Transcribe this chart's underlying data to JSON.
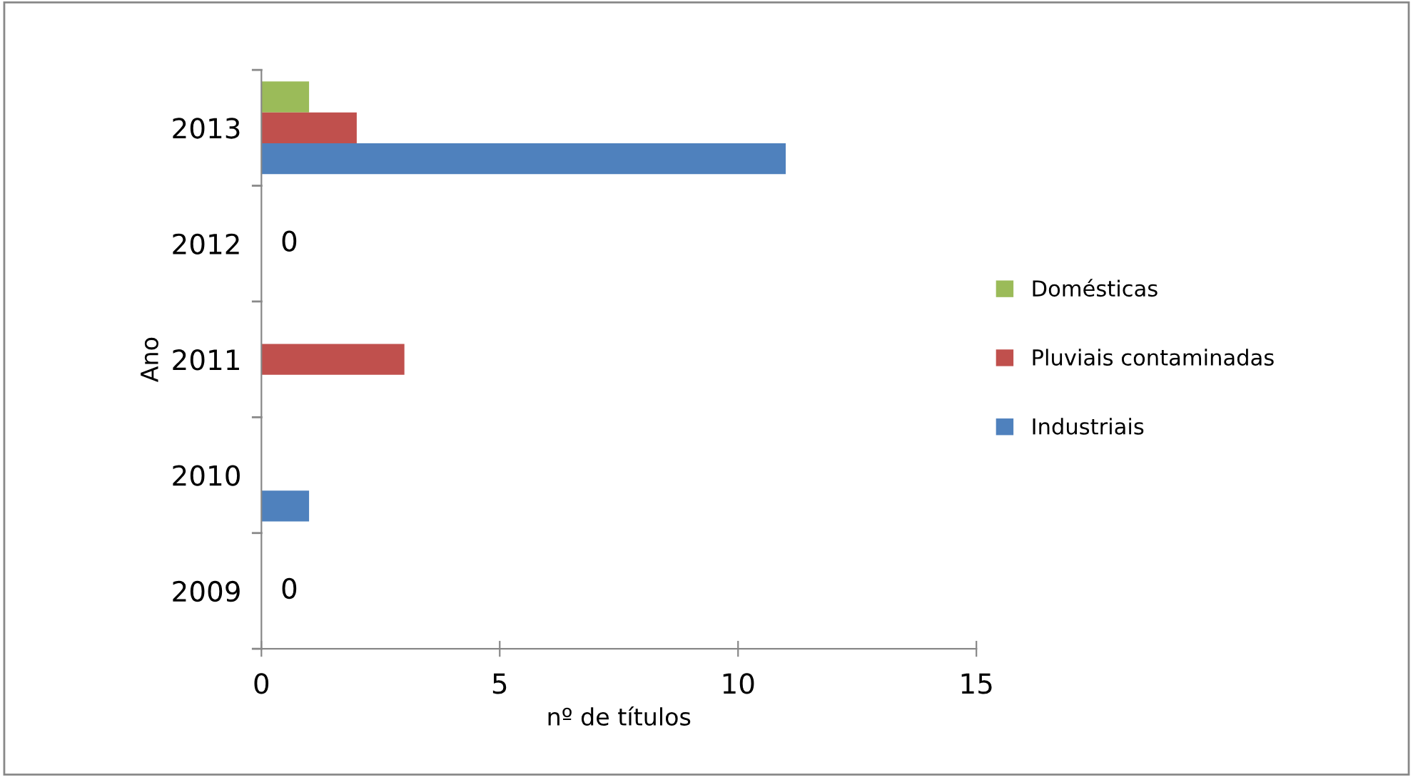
{
  "chart_data": {
    "type": "bar",
    "orientation": "horizontal",
    "xlabel": "nº de títulos",
    "ylabel": "Ano",
    "categories": [
      "2013",
      "2012",
      "2011",
      "2010",
      "2009"
    ],
    "series": [
      {
        "name": "Domésticas",
        "color": "#9bbb59",
        "values": [
          1,
          0,
          0,
          0,
          0
        ]
      },
      {
        "name": "Pluviais contaminadas",
        "color": "#c0504d",
        "values": [
          2,
          0,
          3,
          0,
          0
        ],
        "value_labels": [
          null,
          "0",
          null,
          null,
          "0"
        ]
      },
      {
        "name": "Industriais",
        "color": "#4f81bd",
        "values": [
          11,
          0,
          0,
          1,
          0
        ]
      }
    ],
    "xlim": [
      0,
      15
    ],
    "xticks": [
      0,
      5,
      10,
      15
    ],
    "grid": false,
    "legend": "right"
  }
}
